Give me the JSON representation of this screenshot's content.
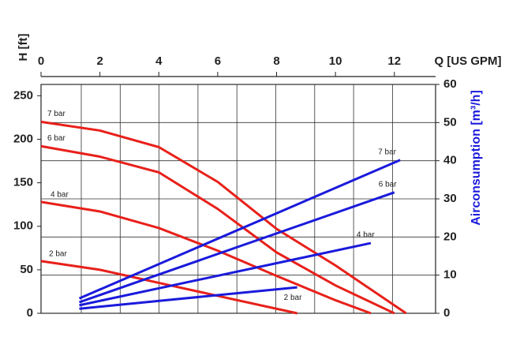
{
  "chart_data": {
    "type": "line",
    "x_label": "Q [US GPM]",
    "y_label": "H [ft]",
    "y2_label": "Airconsumption [m³/h]",
    "xlim": [
      0,
      13.4
    ],
    "xticks": [
      0,
      2,
      4,
      6,
      8,
      10,
      12
    ],
    "ylim": [
      0,
      263
    ],
    "yticks": [
      0,
      50,
      100,
      150,
      200,
      250
    ],
    "y2lim": [
      0,
      60
    ],
    "y2ticks": [
      0,
      10,
      20,
      30,
      40,
      50,
      60
    ],
    "grid": true,
    "series": [
      {
        "name": "7 bar",
        "color": "#e8201a",
        "x": [
          0,
          2,
          4,
          6,
          8,
          10,
          12.4
        ],
        "values": [
          220,
          210,
          191,
          151,
          97,
          55,
          0
        ]
      },
      {
        "name": "6 bar",
        "color": "#e8201a",
        "x": [
          0,
          2,
          4,
          6,
          8,
          10,
          12
        ],
        "values": [
          192,
          180,
          162,
          120,
          70,
          32,
          0
        ]
      },
      {
        "name": "4 bar",
        "color": "#e8201a",
        "x": [
          0,
          2,
          4,
          6,
          8,
          10,
          11.2
        ],
        "values": [
          128,
          117,
          98,
          72,
          43,
          15,
          0
        ]
      },
      {
        "name": "2 bar",
        "color": "#e8201a",
        "x": [
          0,
          2,
          4,
          6,
          8.7
        ],
        "values": [
          60,
          50,
          35,
          20,
          0
        ]
      },
      {
        "name": "7 bar",
        "color": "#1a1adc",
        "axis": "y2",
        "x": [
          1.3,
          12.2
        ],
        "values": [
          3.9,
          40.2
        ]
      },
      {
        "name": "6 bar",
        "color": "#1a1adc",
        "axis": "y2",
        "x": [
          1.3,
          12.0
        ],
        "values": [
          2.9,
          31.7
        ]
      },
      {
        "name": "4 bar",
        "color": "#1a1adc",
        "axis": "y2",
        "x": [
          1.3,
          11.2
        ],
        "values": [
          2.1,
          18.4
        ]
      },
      {
        "name": "2 bar",
        "color": "#1a1adc",
        "axis": "y2",
        "x": [
          1.3,
          8.7
        ],
        "values": [
          1.2,
          6.8
        ]
      }
    ]
  }
}
